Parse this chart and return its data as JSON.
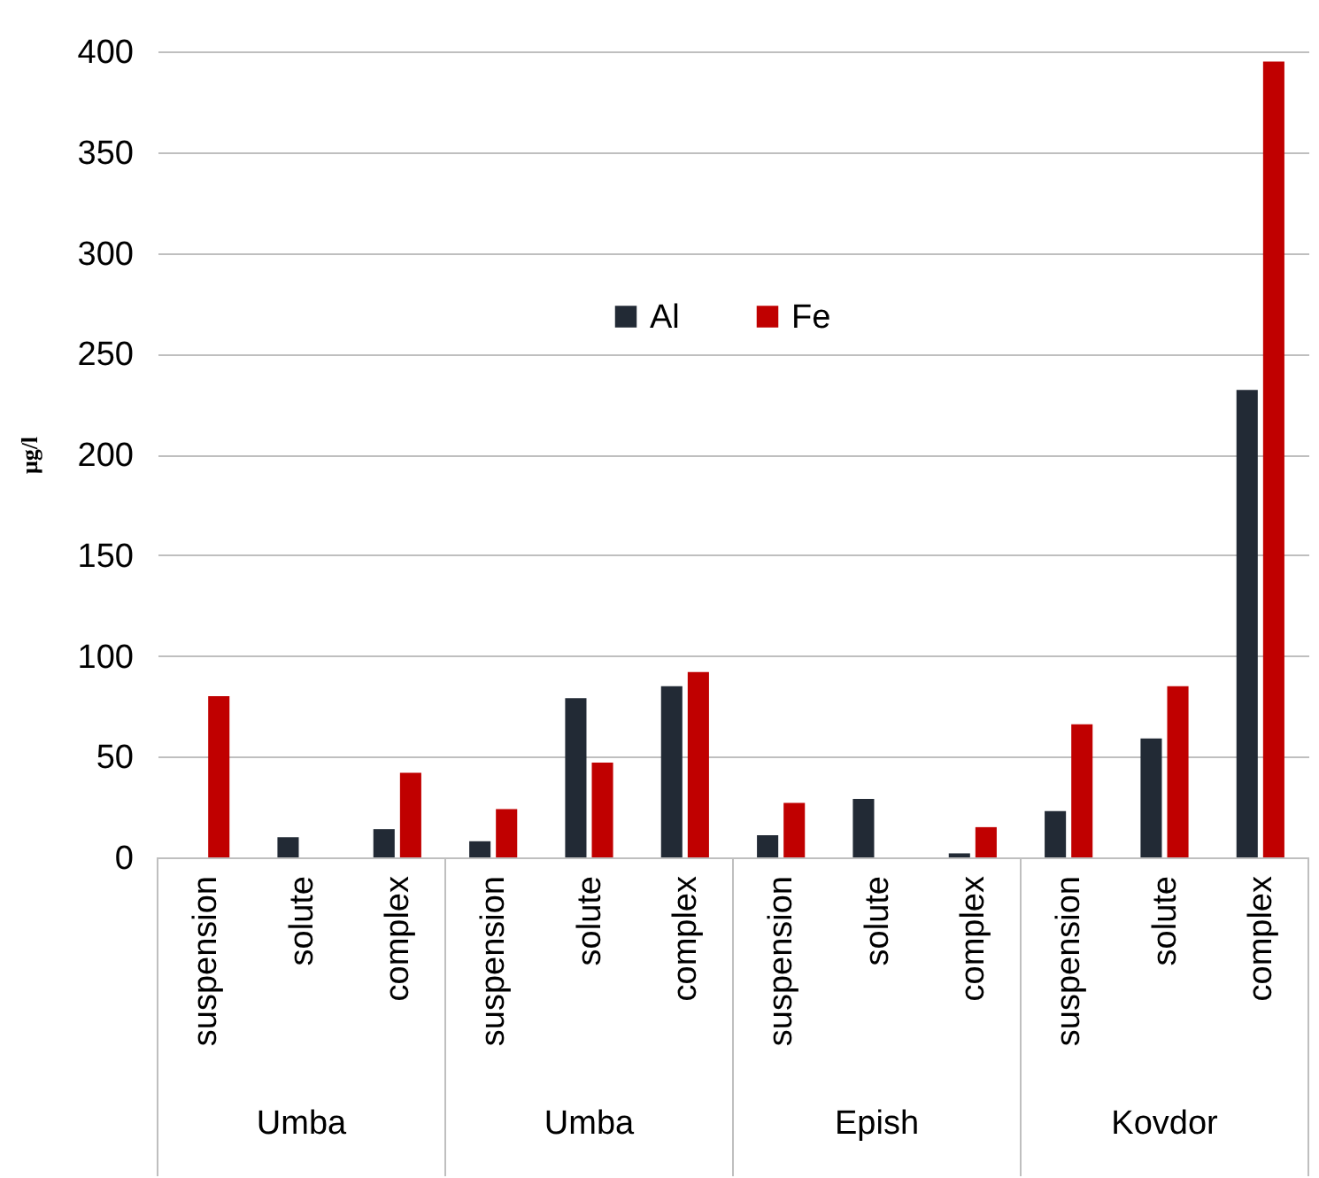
{
  "chart_data": {
    "type": "bar",
    "categories": [
      "suspension",
      "solute",
      "complex",
      "suspension",
      "solute",
      "complex",
      "suspension",
      "solute",
      "complex",
      "suspension",
      "solute",
      "complex"
    ],
    "series": [
      {
        "name": "Al",
        "color": "#222a35",
        "values": [
          0,
          10,
          14,
          8,
          79,
          85,
          11,
          29,
          2,
          23,
          59,
          232
        ]
      },
      {
        "name": "Fe",
        "color": "#c00000",
        "values": [
          80,
          0,
          42,
          24,
          47,
          92,
          27,
          0,
          15,
          66,
          85,
          395
        ]
      }
    ],
    "ylabel": "μg/l",
    "annotations": [
      "Umba",
      "Umba",
      "Epish",
      "Kovdor"
    ],
    "ylim": [
      0,
      400
    ],
    "yticks": [
      0,
      50,
      100,
      150,
      200,
      250,
      300,
      350,
      400
    ],
    "grid": "y",
    "legend": "top"
  }
}
